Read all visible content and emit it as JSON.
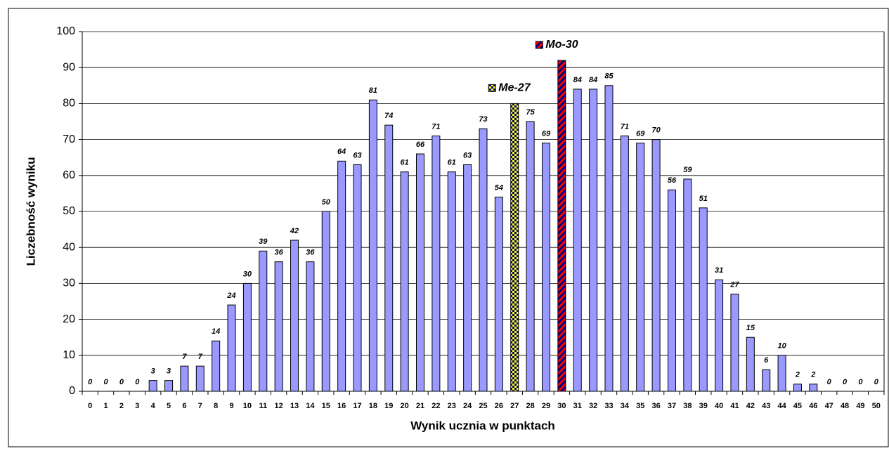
{
  "chart_data": {
    "type": "bar",
    "x_label": "Wynik ucznia w punktach",
    "y_label": "Liczebność wyniku",
    "categories": [
      0,
      1,
      2,
      3,
      4,
      5,
      6,
      7,
      8,
      9,
      10,
      11,
      12,
      13,
      14,
      15,
      16,
      17,
      18,
      19,
      20,
      21,
      22,
      23,
      24,
      25,
      26,
      27,
      28,
      29,
      30,
      31,
      32,
      33,
      34,
      35,
      36,
      37,
      38,
      39,
      40,
      41,
      42,
      43,
      44,
      45,
      46,
      47,
      48,
      49,
      50
    ],
    "values": [
      0,
      0,
      0,
      0,
      3,
      3,
      7,
      7,
      14,
      24,
      30,
      39,
      36,
      42,
      36,
      50,
      64,
      63,
      81,
      74,
      61,
      66,
      71,
      61,
      63,
      73,
      54,
      80,
      75,
      69,
      92,
      84,
      84,
      85,
      71,
      69,
      70,
      56,
      59,
      51,
      31,
      27,
      15,
      6,
      10,
      2,
      2,
      0,
      0,
      0,
      0
    ],
    "color": "#9999ff",
    "ylim": [
      0,
      100
    ],
    "yticks": [
      0,
      10,
      20,
      30,
      40,
      50,
      60,
      70,
      80,
      90,
      100
    ],
    "grid": true,
    "annotations": [
      {
        "text": "Me-27",
        "x": 27,
        "pattern": "checker"
      },
      {
        "text": "Mo-30",
        "x": 30,
        "pattern": "stripes"
      }
    ]
  }
}
